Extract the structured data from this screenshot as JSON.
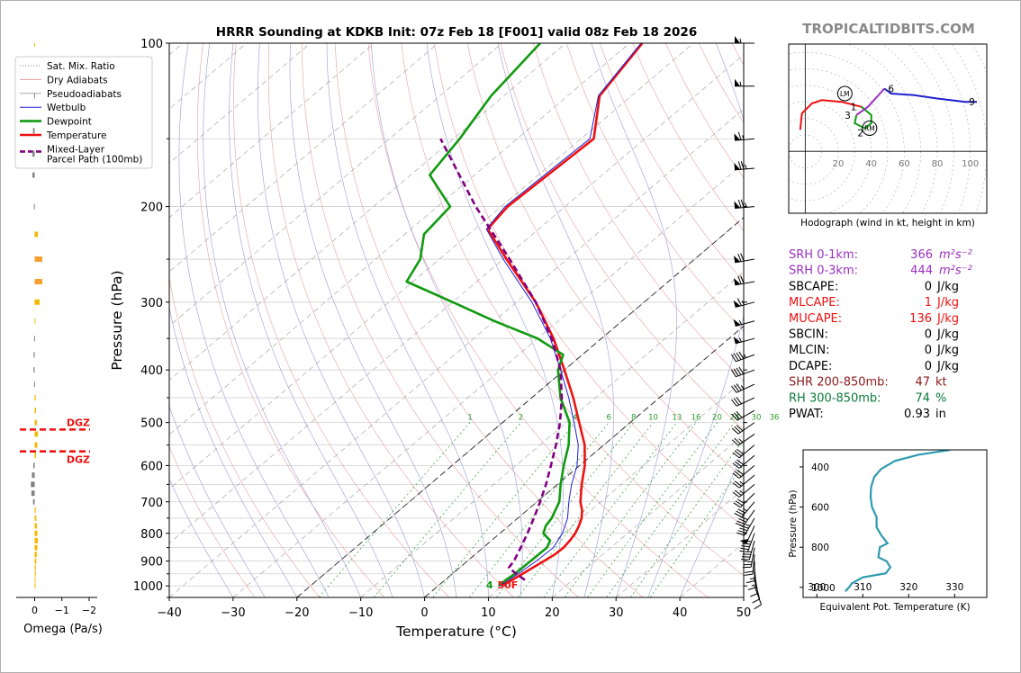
{
  "title": "HRRR Sounding at KDKB Init: 07z Feb 18 [F001] valid 08z Feb 18 2026",
  "watermark": "TROPICALTIDBITS.COM",
  "chart_data": [
    {
      "type": "line",
      "name": "skew-t",
      "xlabel": "Temperature (°C)",
      "ylabel": "Pressure (hPa)",
      "xlim": [
        -40,
        50
      ],
      "ylim": [
        1050,
        100
      ],
      "y_scale": "log",
      "skew_deg_per_decade": 100,
      "x_ticks": [
        "−40",
        "−30",
        "−20",
        "−10",
        "0",
        "10",
        "20",
        "30",
        "40",
        "50"
      ],
      "x_tick_values": [
        -40,
        -30,
        -20,
        -10,
        0,
        10,
        20,
        30,
        40,
        50
      ],
      "y_ticks": [
        "100",
        "200",
        "300",
        "400",
        "500",
        "600",
        "700",
        "800",
        "900",
        "1000"
      ],
      "y_tick_values": [
        100,
        200,
        300,
        400,
        500,
        600,
        700,
        800,
        900,
        1000
      ],
      "legend": [
        "Sat. Mix. Ratio",
        "Dry Adiabats",
        "Pseudoadiabats",
        "Wetbulb",
        "Dewpoint",
        "Temperature",
        "Mixed-Layer\nParcel Path (100mb)"
      ],
      "legend_colors": [
        "#888888",
        "#e8a0a0",
        "#aaaaaa",
        "#1f1fd0",
        "#109a10",
        "#ee1111",
        "#800080"
      ],
      "legend_placement": "upper-left",
      "mixing_ratio_labels": [
        "1",
        "2",
        "4",
        "6",
        "8",
        "10",
        "13",
        "16",
        "20",
        "24",
        "30",
        "36"
      ],
      "mixing_ratio_values": [
        1,
        2,
        4,
        6,
        8,
        10,
        13,
        16,
        20,
        24,
        30,
        36
      ],
      "surface_temp_label": "50F",
      "surface_dew_label": "4",
      "series": [
        {
          "name": "Temperature",
          "color": "#ee1111",
          "p": [
            1000,
            975,
            950,
            925,
            900,
            875,
            850,
            825,
            800,
            775,
            750,
            725,
            700,
            650,
            600,
            550,
            500,
            450,
            400,
            350,
            300,
            250,
            220,
            200,
            150,
            125,
            100
          ],
          "t": [
            10.0,
            10.5,
            11.0,
            11.5,
            12.0,
            12.5,
            12.6,
            12.3,
            11.8,
            11.0,
            10.0,
            8.6,
            6.8,
            3.8,
            0.8,
            -3.0,
            -8.0,
            -13.5,
            -20.0,
            -27.5,
            -37.0,
            -49.5,
            -58.0,
            -59.0,
            -58.0,
            -65.0,
            -68.0
          ]
        },
        {
          "name": "Dewpoint",
          "color": "#109a10",
          "p": [
            1000,
            975,
            950,
            900,
            850,
            825,
            800,
            775,
            750,
            700,
            650,
            600,
            550,
            500,
            450,
            400,
            375,
            350,
            325,
            300,
            275,
            250,
            225,
            200,
            175,
            150,
            125,
            100
          ],
          "t": [
            9.5,
            9.5,
            9.8,
            9.9,
            10.0,
            9.2,
            6.8,
            5.8,
            5.3,
            3.5,
            0.5,
            -2.5,
            -5.5,
            -9.5,
            -15.5,
            -21.0,
            -23.0,
            -30.0,
            -40.0,
            -50.0,
            -61.0,
            -63.0,
            -67.0,
            -68.0,
            -77.0,
            -79.0,
            -82.0,
            -84.0
          ]
        },
        {
          "name": "Wetbulb",
          "color": "#1f1fd0",
          "p": [
            1000,
            950,
            900,
            850,
            800,
            750,
            700,
            650,
            600,
            550,
            500,
            450,
            400,
            350,
            300,
            250,
            220,
            200,
            150,
            125,
            100
          ],
          "t": [
            9.7,
            10.3,
            10.8,
            11.0,
            9.8,
            7.8,
            5.0,
            2.2,
            -0.4,
            -4.0,
            -8.8,
            -14.2,
            -20.6,
            -28.0,
            -37.6,
            -50.0,
            -58.2,
            -59.4,
            -58.6,
            -65.2,
            -68.2
          ]
        },
        {
          "name": "Mixed-Layer Parcel Path (100mb)",
          "color": "#800080",
          "dashed": true,
          "p": [
            975,
            950,
            925,
            900,
            875,
            850,
            800,
            750,
            700,
            650,
            600,
            550,
            500,
            450,
            400,
            350,
            300,
            250,
            200,
            150
          ],
          "t": [
            12.5,
            10.0,
            7.7,
            7.3,
            6.6,
            5.9,
            4.3,
            2.5,
            0.5,
            -1.8,
            -4.5,
            -7.5,
            -11.0,
            -15.3,
            -20.6,
            -27.8,
            -37.0,
            -49.0,
            -64.0,
            -82.0
          ]
        }
      ]
    },
    {
      "type": "line",
      "name": "hodograph",
      "title": "Hodograph (wind in kt, height in km)",
      "ring_labels": [
        "20",
        "40",
        "60",
        "80",
        "100"
      ],
      "ring_values": [
        20,
        40,
        60,
        80,
        100
      ],
      "xlim": [
        -10,
        110
      ],
      "ylim": [
        -35,
        65
      ],
      "points": [
        {
          "u": -3,
          "v": 13,
          "km": 0
        },
        {
          "u": -2,
          "v": 23,
          "km": null
        },
        {
          "u": 4,
          "v": 29,
          "km": null
        },
        {
          "u": 10,
          "v": 31,
          "km": null
        },
        {
          "u": 22,
          "v": 30,
          "km": null
        },
        {
          "u": 34,
          "v": 27,
          "km": 1
        },
        {
          "u": 40,
          "v": 22,
          "km": null
        },
        {
          "u": 40,
          "v": 17,
          "km": null
        },
        {
          "u": 36,
          "v": 14,
          "km": 2
        },
        {
          "u": 30,
          "v": 17,
          "km": null
        },
        {
          "u": 31,
          "v": 22,
          "km": 3
        },
        {
          "u": 38,
          "v": 27,
          "km": null
        },
        {
          "u": 48,
          "v": 38,
          "km": 6
        },
        {
          "u": 52,
          "v": 35,
          "km": null
        },
        {
          "u": 66,
          "v": 34,
          "km": null
        },
        {
          "u": 80,
          "v": 32,
          "km": null
        },
        {
          "u": 97,
          "v": 30,
          "km": 9
        },
        {
          "u": 104,
          "v": 30,
          "km": null
        }
      ],
      "segment_colors": [
        "#ee1111",
        "#109a10",
        "#9b30c0",
        "#1f1fd0"
      ],
      "storm_motion_labels": [
        "LM",
        "RM"
      ],
      "lm": {
        "u": 24,
        "v": 35
      },
      "rm": {
        "u": 39,
        "v": 14
      },
      "height_labels": [
        "1",
        "2",
        "3",
        "6",
        "9"
      ]
    },
    {
      "type": "line",
      "name": "theta-e",
      "xlabel": "Equivalent Pot. Temperature (K)",
      "ylabel": "Pressure (hPa)",
      "xlim": [
        297,
        337
      ],
      "ylim": [
        1050,
        315
      ],
      "x_ticks": [
        "300",
        "310",
        "320",
        "330"
      ],
      "x_tick_values": [
        300,
        310,
        320,
        330
      ],
      "y_ticks": [
        "400",
        "600",
        "800",
        "1000"
      ],
      "y_tick_values": [
        400,
        600,
        800,
        1000
      ],
      "color": "#2e9ab0",
      "p": [
        1020,
        1000,
        980,
        950,
        930,
        900,
        870,
        850,
        800,
        780,
        740,
        700,
        650,
        600,
        550,
        500,
        450,
        410,
        370,
        340,
        315
      ],
      "theta_e": [
        306.2,
        307.0,
        307.6,
        310.0,
        315.0,
        316.0,
        315.2,
        313.4,
        313.7,
        315.4,
        314.0,
        313.0,
        313.0,
        312.0,
        311.7,
        311.8,
        312.5,
        314.0,
        317.0,
        322.0,
        329.0
      ]
    },
    {
      "type": "bar",
      "name": "omega",
      "xlabel": "Omega (Pa/s)",
      "x_ticks": [
        "0",
        "−1",
        "−2"
      ],
      "x_tick_values": [
        0,
        -1,
        -2
      ],
      "xlim": [
        0.25,
        -2.2
      ],
      "positive_color": "#808080",
      "negative_color": "#f5b800",
      "strong_negative_color": "#f7a030",
      "p": [
        125,
        145,
        160,
        175,
        200,
        225,
        250,
        275,
        300,
        325,
        350,
        375,
        400,
        425,
        450,
        475,
        500,
        525,
        550,
        575,
        600,
        625,
        650,
        675,
        700,
        725,
        750,
        775,
        800,
        825,
        850,
        875,
        900,
        925,
        950,
        975,
        1000
      ],
      "values": [
        0.02,
        0.06,
        0.08,
        0.08,
        0.03,
        -0.12,
        -0.28,
        -0.28,
        -0.18,
        -0.03,
        0.02,
        0.04,
        0.04,
        0.02,
        -0.04,
        -0.05,
        -0.08,
        -0.12,
        -0.1,
        -0.05,
        0.05,
        0.1,
        0.14,
        0.12,
        0.06,
        -0.04,
        -0.06,
        -0.08,
        -0.1,
        -0.12,
        -0.1,
        -0.08,
        -0.06,
        -0.04,
        -0.04,
        -0.02,
        -0.01
      ],
      "dgz_label": "DGZ",
      "dgz_top_p": 565,
      "dgz_bottom_p": 515,
      "dgz_color": "#ee1111"
    }
  ],
  "params": [
    {
      "label": "SRH 0-1km:",
      "value": "366",
      "unit": "m²s⁻²",
      "color": "#9b30c0"
    },
    {
      "label": "SRH 0-3km:",
      "value": "444",
      "unit": "m²s⁻²",
      "color": "#9b30c0"
    },
    {
      "label": "SBCAPE:",
      "value": "0",
      "unit": "J/kg",
      "color": "#000000"
    },
    {
      "label": "MLCAPE:",
      "value": "1",
      "unit": "J/kg",
      "color": "#ee1111"
    },
    {
      "label": "MUCAPE:",
      "value": "136",
      "unit": "J/kg",
      "color": "#ee1111"
    },
    {
      "label": "SBCIN:",
      "value": "0",
      "unit": "J/kg",
      "color": "#000000"
    },
    {
      "label": "MLCIN:",
      "value": "0",
      "unit": "J/kg",
      "color": "#000000"
    },
    {
      "label": "DCAPE:",
      "value": "0",
      "unit": "J/kg",
      "color": "#000000"
    },
    {
      "label": "SHR 200-850mb:",
      "value": "47",
      "unit": "kt",
      "color": "#8b1a1a"
    },
    {
      "label": "RH 300-850mb:",
      "value": "74",
      "unit": "%",
      "color": "#0a7a3a"
    },
    {
      "label": "PWAT:",
      "value": "0.93",
      "unit": "in",
      "color": "#000000"
    }
  ],
  "wind_profile": {
    "p": [
      100,
      120,
      150,
      170,
      200,
      250,
      275,
      300,
      325,
      350,
      375,
      400,
      425,
      450,
      475,
      500,
      525,
      550,
      575,
      600,
      625,
      650,
      675,
      700,
      725,
      750,
      775,
      800,
      825,
      850,
      875,
      900,
      925,
      950,
      975,
      1000
    ],
    "spd": [
      55,
      55,
      65,
      75,
      75,
      70,
      70,
      65,
      55,
      55,
      45,
      40,
      35,
      30,
      30,
      30,
      25,
      30,
      30,
      30,
      25,
      25,
      30,
      35,
      40,
      45,
      50,
      45,
      35,
      25,
      20,
      15,
      15,
      10,
      10,
      10
    ],
    "dir": [
      270,
      270,
      265,
      265,
      265,
      260,
      260,
      255,
      255,
      255,
      250,
      250,
      245,
      245,
      240,
      235,
      235,
      230,
      230,
      230,
      230,
      230,
      225,
      220,
      215,
      210,
      205,
      200,
      195,
      190,
      185,
      180,
      175,
      170,
      165,
      160
    ]
  }
}
